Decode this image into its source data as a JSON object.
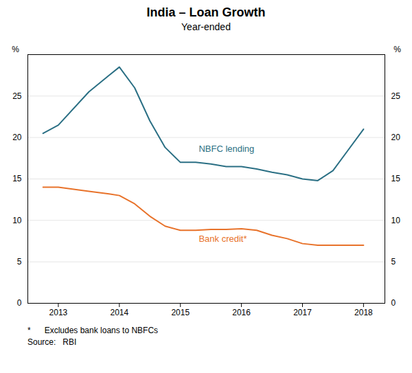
{
  "chart_data": {
    "type": "line",
    "title": "India – Loan Growth",
    "subtitle": "Year-ended",
    "ylabel": "%",
    "y2label": "%",
    "x": [
      2012.75,
      2013.0,
      2013.5,
      2013.83,
      2014.0,
      2014.25,
      2014.5,
      2014.75,
      2015.0,
      2015.25,
      2015.5,
      2015.75,
      2016.0,
      2016.25,
      2016.5,
      2016.75,
      2017.0,
      2017.25,
      2017.5,
      2017.75,
      2018.0
    ],
    "series": [
      {
        "name": "NBFC lending",
        "color": "#2a6f84",
        "values": [
          20.5,
          21.5,
          25.5,
          27.5,
          28.5,
          26.0,
          22.0,
          18.8,
          17.0,
          17.0,
          16.8,
          16.5,
          16.5,
          16.2,
          15.8,
          15.5,
          15.0,
          14.8,
          16.0,
          18.5,
          21.0
        ],
        "label_x": 2015.3,
        "label_y": 18.3
      },
      {
        "name": "Bank credit*",
        "color": "#e8722a",
        "values": [
          14.0,
          14.0,
          13.5,
          13.2,
          13.0,
          12.0,
          10.5,
          9.3,
          8.8,
          8.8,
          8.9,
          8.9,
          9.0,
          8.8,
          8.2,
          7.8,
          7.2,
          7.0,
          7.0,
          7.0,
          7.0
        ],
        "label_x": 2015.3,
        "label_y": 8.2
      }
    ],
    "xlim": [
      2012.5,
      2018.35
    ],
    "xticks": [
      2013,
      2014,
      2015,
      2016,
      2017,
      2018
    ],
    "ylim": [
      0,
      30
    ],
    "yticks": [
      0,
      5,
      10,
      15,
      20,
      25
    ],
    "grid": true,
    "footnotes": [
      "*      Excludes bank loans to NBFCs",
      "Source:   RBI"
    ]
  }
}
